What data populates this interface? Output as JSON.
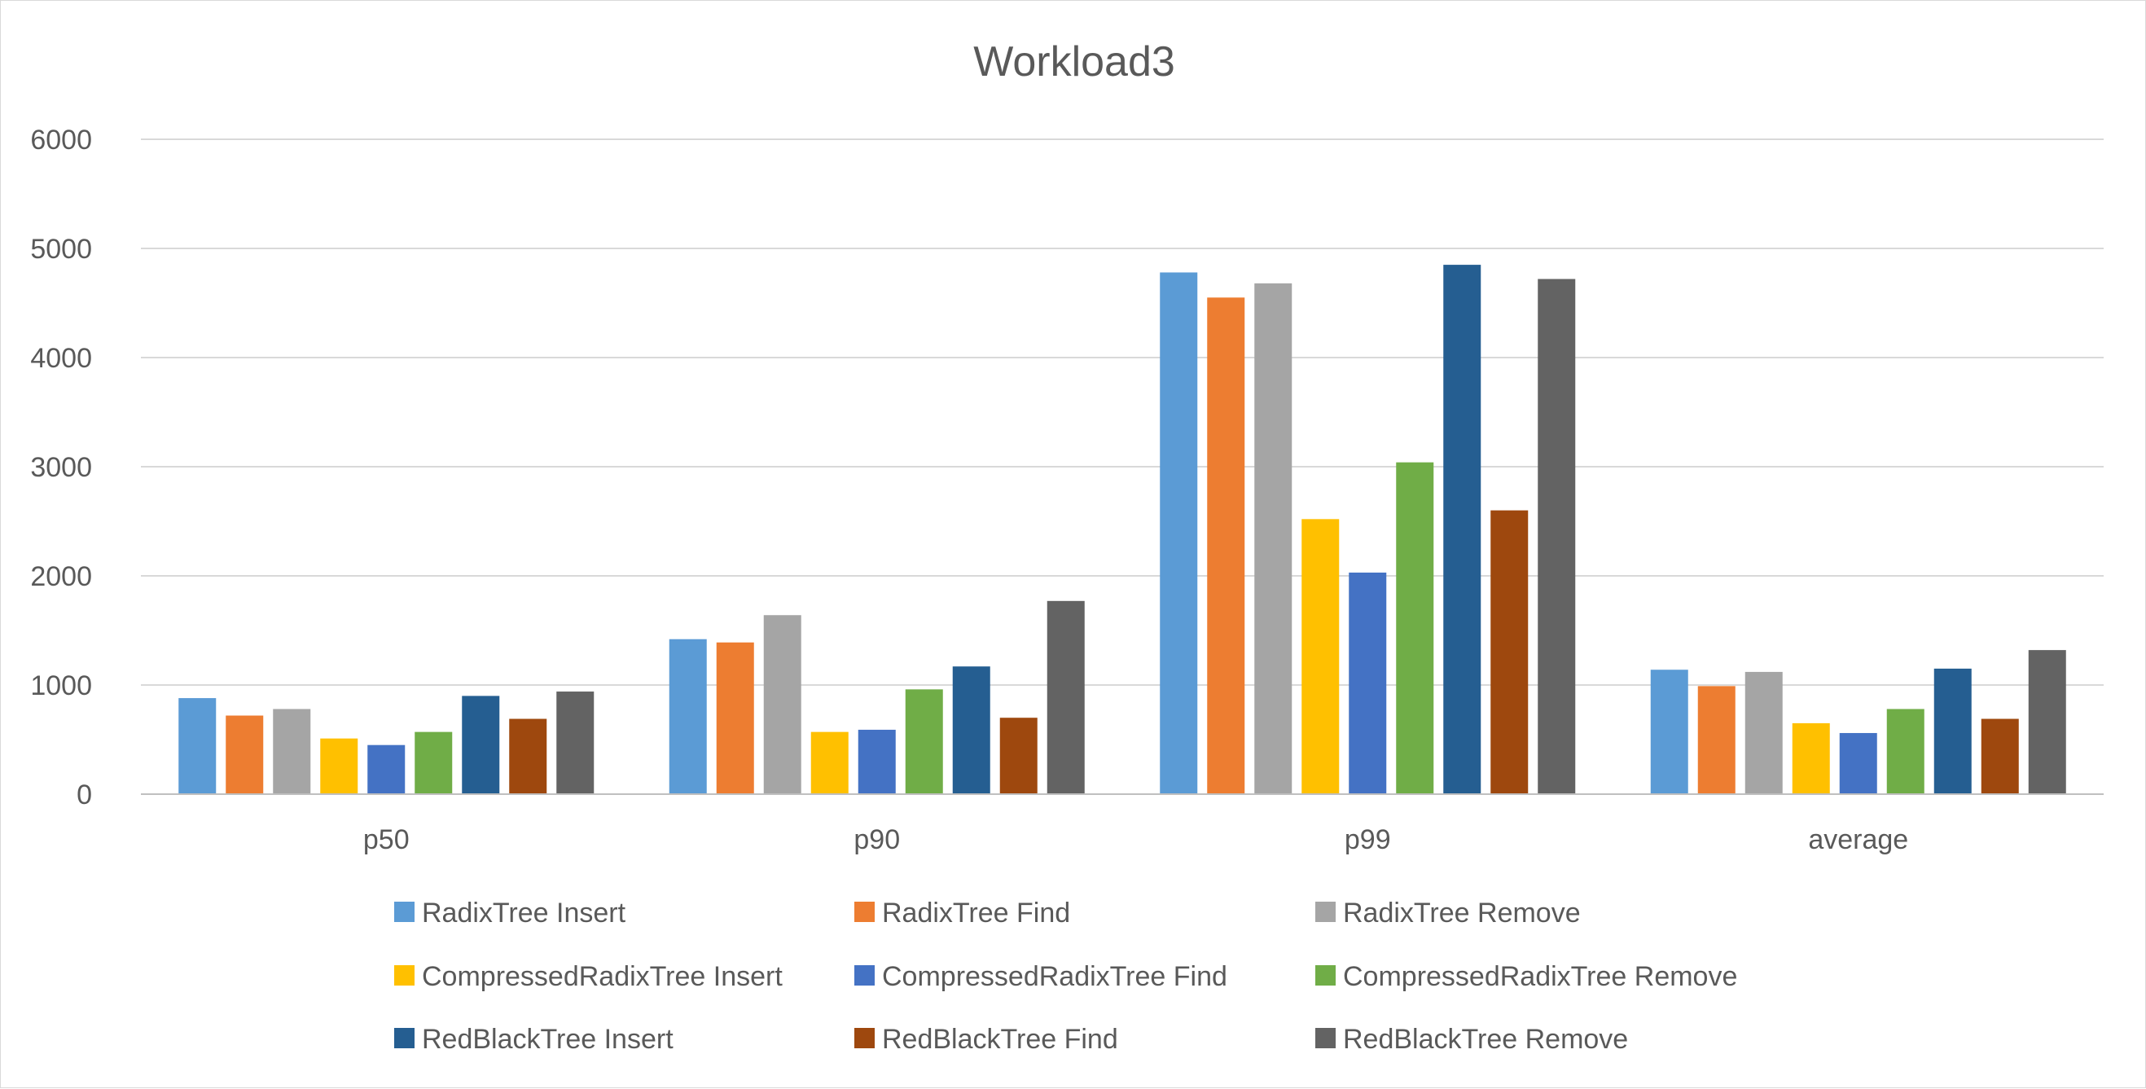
{
  "chart_data": {
    "type": "bar",
    "title": "Workload3",
    "xlabel": "",
    "ylabel": "",
    "ylim": [
      0,
      6000
    ],
    "yticks": [
      0,
      1000,
      2000,
      3000,
      4000,
      5000,
      6000
    ],
    "grid": true,
    "legend_position": "bottom",
    "categories": [
      "p50",
      "p90",
      "p99",
      "average"
    ],
    "series": [
      {
        "name": "RadixTree Insert",
        "color": "#5b9bd5",
        "values": [
          880,
          1420,
          4780,
          1140
        ]
      },
      {
        "name": "RadixTree Find",
        "color": "#ed7d31",
        "values": [
          720,
          1390,
          4550,
          990
        ]
      },
      {
        "name": "RadixTree Remove",
        "color": "#a5a5a5",
        "values": [
          780,
          1640,
          4680,
          1120
        ]
      },
      {
        "name": "CompressedRadixTree Insert",
        "color": "#ffc000",
        "values": [
          510,
          570,
          2520,
          650
        ]
      },
      {
        "name": "CompressedRadixTree Find",
        "color": "#4472c4",
        "values": [
          450,
          590,
          2030,
          560
        ]
      },
      {
        "name": "CompressedRadixTree Remove",
        "color": "#70ad47",
        "values": [
          570,
          960,
          3040,
          780
        ]
      },
      {
        "name": "RedBlackTree Insert",
        "color": "#255e91",
        "values": [
          900,
          1170,
          4850,
          1150
        ]
      },
      {
        "name": "RedBlackTree Find",
        "color": "#9e480e",
        "values": [
          690,
          700,
          2600,
          690
        ]
      },
      {
        "name": "RedBlackTree Remove",
        "color": "#636363",
        "values": [
          940,
          1770,
          4720,
          1320
        ]
      }
    ]
  }
}
